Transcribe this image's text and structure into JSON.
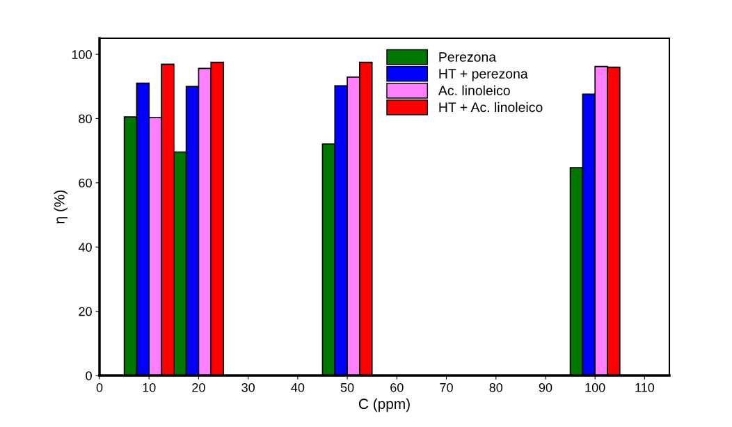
{
  "chart_data": {
    "type": "bar",
    "xlabel": "C (ppm)",
    "ylabel": "η (%)",
    "xlim": [
      0,
      115
    ],
    "xticks": [
      0,
      10,
      20,
      30,
      40,
      50,
      60,
      70,
      80,
      90,
      100,
      110
    ],
    "ylim": [
      0,
      105
    ],
    "yticks": [
      0,
      20,
      40,
      60,
      80,
      100
    ],
    "grid": false,
    "legend": "top",
    "series": [
      {
        "name": "Perezona",
        "color": "#007800",
        "x": [
          6.25,
          16.25,
          46.25,
          96.25
        ],
        "values": [
          80.5,
          69.6,
          72.1,
          64.7
        ]
      },
      {
        "name": "HT + perezona",
        "color": "#0000ff",
        "x": [
          8.75,
          18.75,
          48.75,
          98.75
        ],
        "values": [
          91.0,
          90.0,
          90.2,
          87.6
        ]
      },
      {
        "name": "Ac. linoleico",
        "color": "#ff80ff",
        "x": [
          11.25,
          21.25,
          51.25,
          101.25
        ],
        "values": [
          80.3,
          95.6,
          92.9,
          96.2
        ]
      },
      {
        "name": "HT + Ac. linoleico",
        "color": "#ff0000",
        "x": [
          13.75,
          23.75,
          53.75,
          103.75
        ],
        "values": [
          96.9,
          97.5,
          97.5,
          96.0
        ]
      }
    ]
  }
}
